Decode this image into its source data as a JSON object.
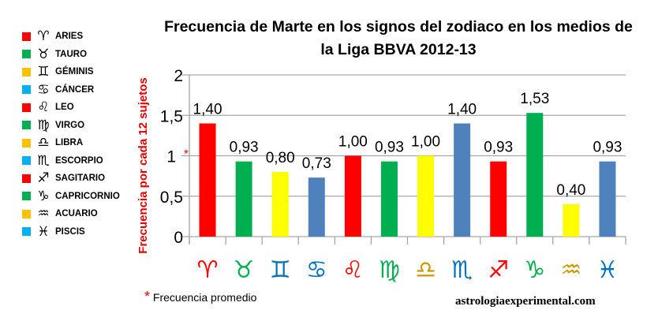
{
  "chart_data": {
    "type": "bar",
    "title": "Frecuencia de Marte en los signos del zodiaco en los medios de la Liga BBVA 2012-13",
    "ylabel": "Frecuencia por cada 12 sujetos",
    "xlabel": "",
    "ylim": [
      0,
      2
    ],
    "yticks": [
      "0",
      "0,5",
      "1",
      "1,5",
      "2"
    ],
    "ytick_values": [
      0,
      0.5,
      1,
      1.5,
      2
    ],
    "ytick_marker": {
      "value": 1,
      "marker": "*",
      "color": "#e00000"
    },
    "grid": true,
    "categories": [
      "ARIES",
      "TAURO",
      "GÉMINIS",
      "CÁNCER",
      "LEO",
      "VIRGO",
      "LIBRA",
      "ESCORPIO",
      "SAGITARIO",
      "CAPRICORNIO",
      "ACUARIO",
      "PISCIS"
    ],
    "category_symbols": [
      "♈",
      "♉",
      "♊",
      "♋",
      "♌",
      "♍",
      "♎",
      "♏",
      "♐",
      "♑",
      "♒",
      "♓"
    ],
    "symbol_colors": [
      "#ff0000",
      "#00b050",
      "#0070c0",
      "#0070c0",
      "#ff0000",
      "#00b050",
      "#cc9900",
      "#0070c0",
      "#ff0000",
      "#00b050",
      "#cc9900",
      "#0070c0"
    ],
    "values": [
      1.4,
      0.93,
      0.8,
      0.73,
      1.0,
      0.93,
      1.0,
      1.4,
      0.93,
      1.53,
      0.4,
      0.93
    ],
    "data_labels": [
      "1,40",
      "0,93",
      "0,80",
      "0,73",
      "1,00",
      "0,93",
      "1,00",
      "1,40",
      "0,93",
      "1,53",
      "0,40",
      "0,93"
    ],
    "bar_colors": [
      "#ff0000",
      "#00b050",
      "#ffff00",
      "#4f81bd",
      "#ff0000",
      "#00b050",
      "#ffff00",
      "#4f81bd",
      "#ff0000",
      "#00b050",
      "#ffff00",
      "#4f81bd"
    ]
  },
  "legend": {
    "placement": "left",
    "items": [
      {
        "label": "ARIES",
        "symbol": "♈",
        "color": "#ff0000"
      },
      {
        "label": "TAURO",
        "symbol": "♉",
        "color": "#00b050"
      },
      {
        "label": "GÉMINIS",
        "symbol": "♊",
        "color": "#ffc000"
      },
      {
        "label": "CÁNCER",
        "symbol": "♋",
        "color": "#00b0f0"
      },
      {
        "label": "LEO",
        "symbol": "♌",
        "color": "#ff0000"
      },
      {
        "label": "VIRGO",
        "symbol": "♍",
        "color": "#00b050"
      },
      {
        "label": "LIBRA",
        "symbol": "♎",
        "color": "#ffc000"
      },
      {
        "label": "ESCORPIO",
        "symbol": "♏",
        "color": "#00b0f0"
      },
      {
        "label": "SAGITARIO",
        "symbol": "♐",
        "color": "#ff0000"
      },
      {
        "label": "CAPRICORNIO",
        "symbol": "♑",
        "color": "#00b050"
      },
      {
        "label": "ACUARIO",
        "symbol": "♒",
        "color": "#ffc000"
      },
      {
        "label": "PISCIS",
        "symbol": "♓",
        "color": "#00b0f0"
      }
    ]
  },
  "footnote": {
    "marker": "*",
    "text": "Frecuencia promedio"
  },
  "site": "astrologiaexperimental.com"
}
